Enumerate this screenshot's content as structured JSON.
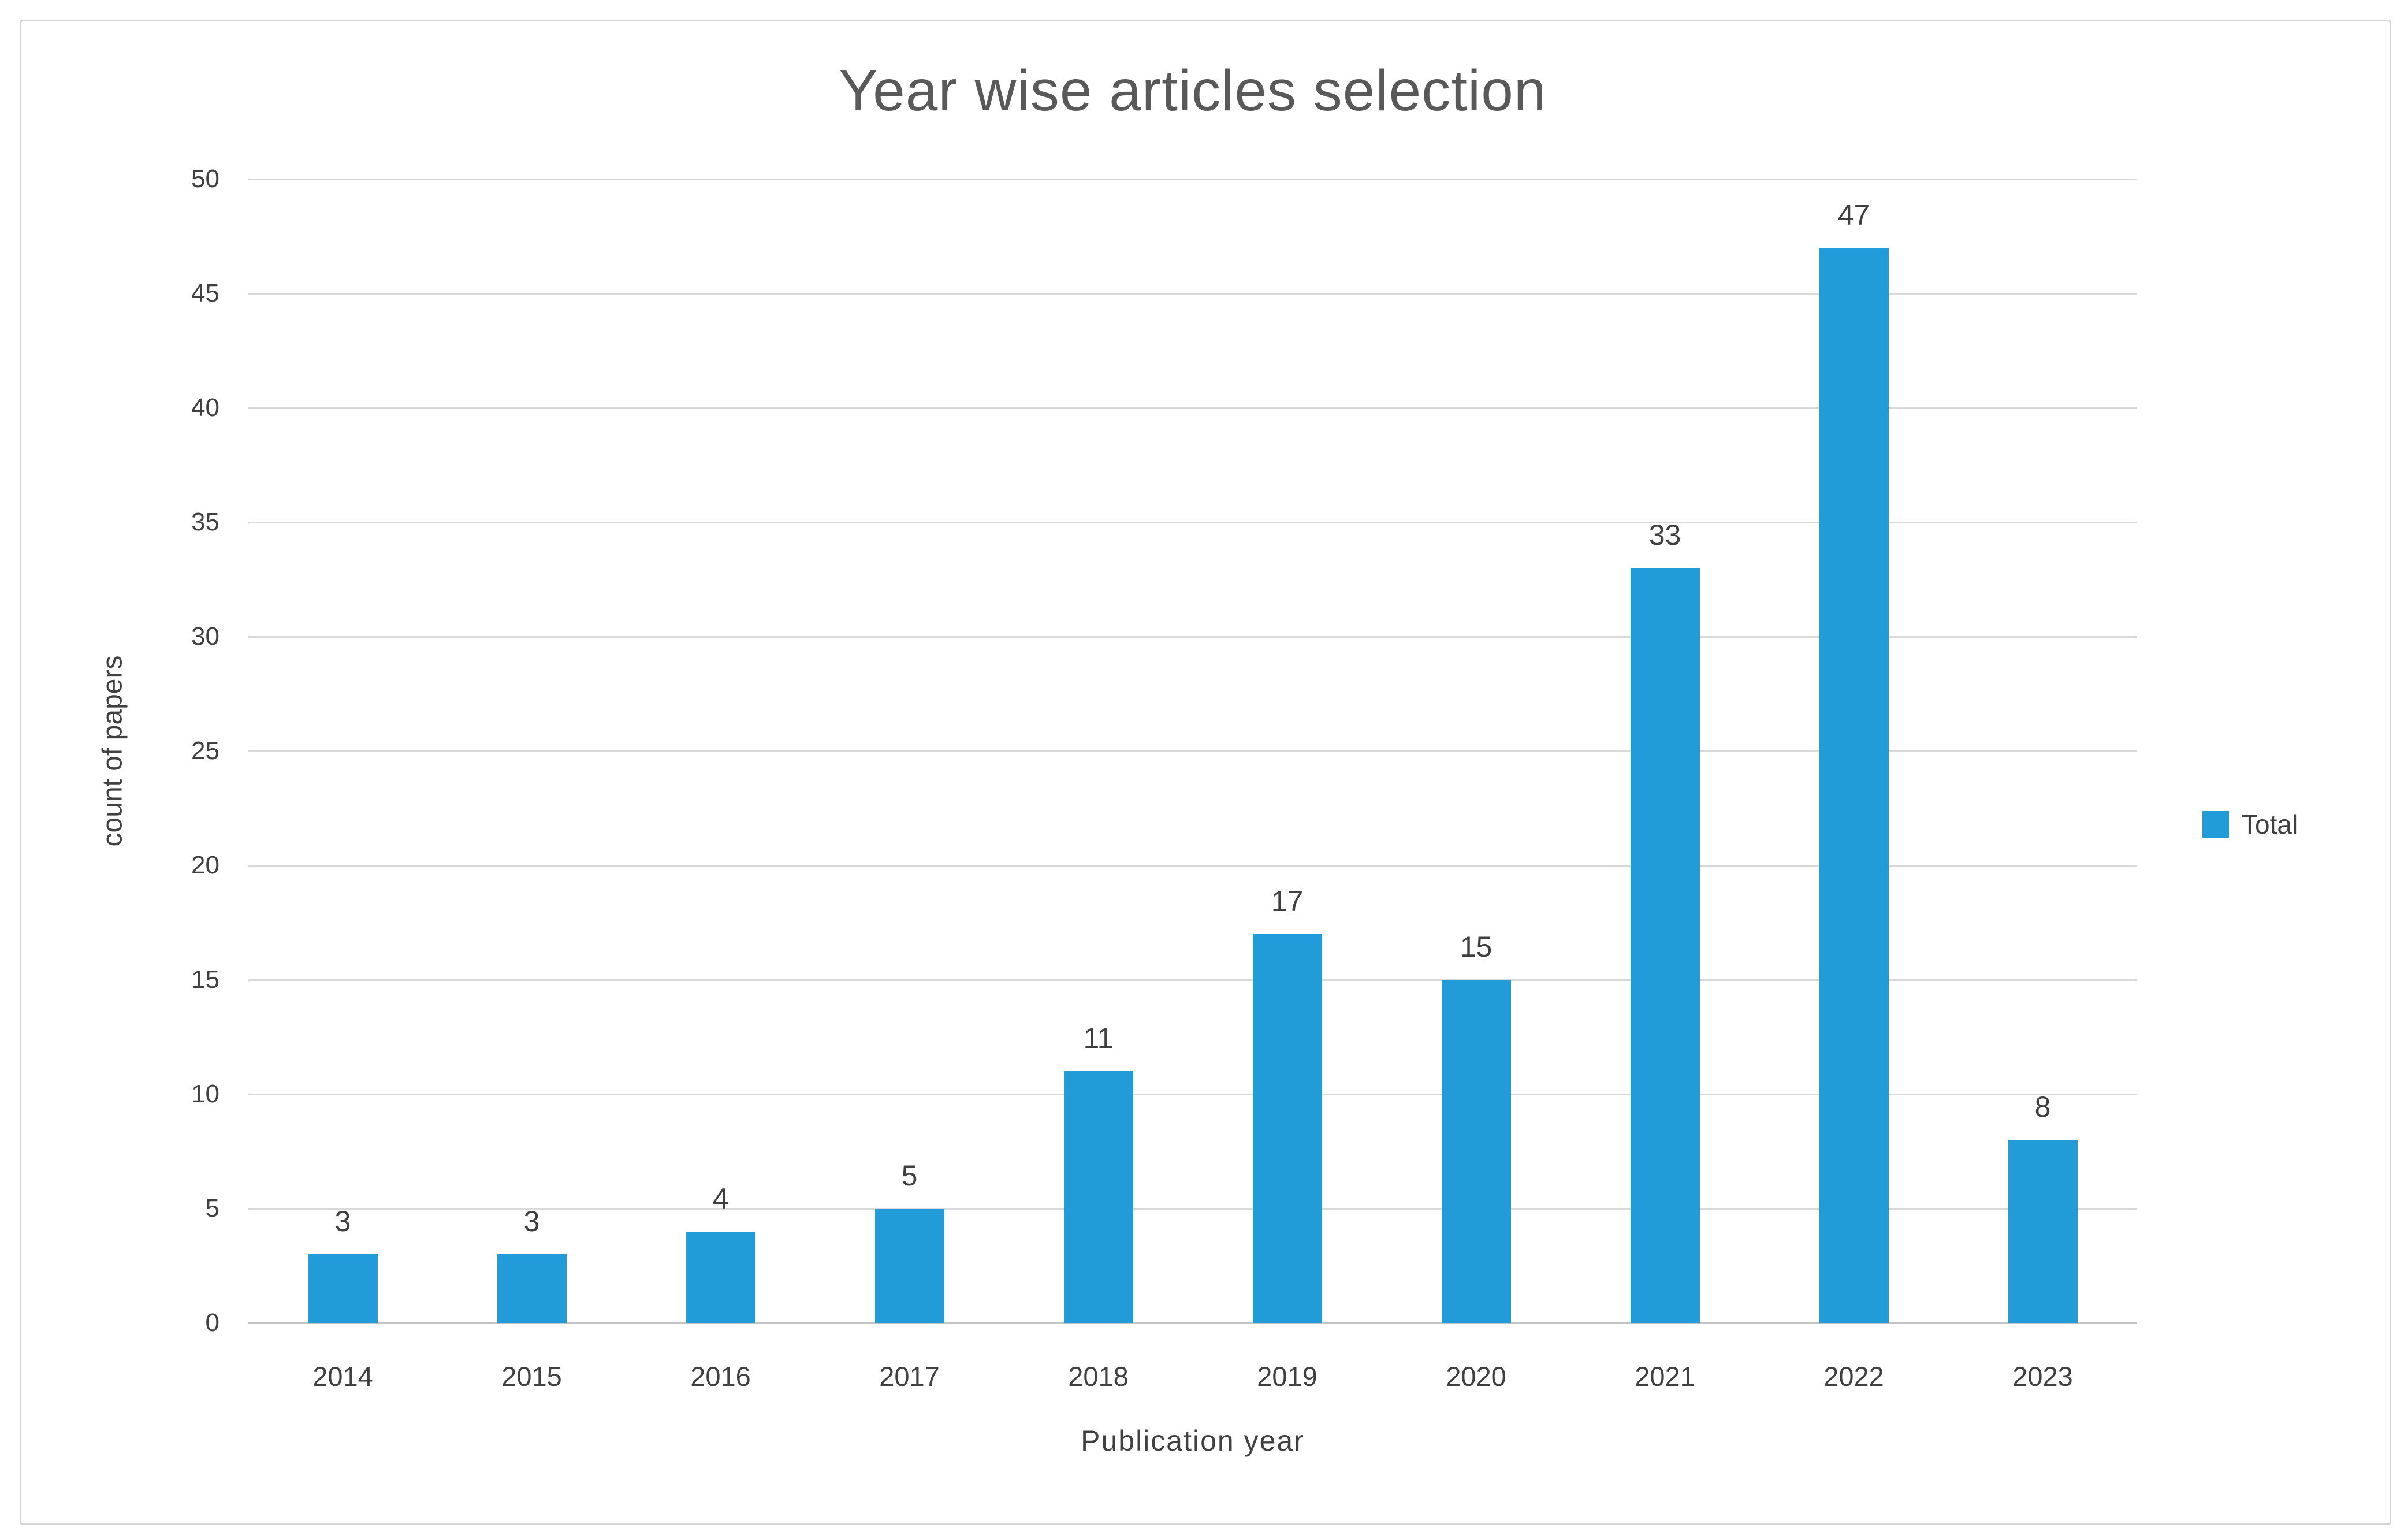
{
  "chart_data": {
    "type": "bar",
    "title": "Year wise articles selection",
    "xlabel": "Publication year",
    "ylabel": "count of papers",
    "categories": [
      "2014",
      "2015",
      "2016",
      "2017",
      "2018",
      "2019",
      "2020",
      "2021",
      "2022",
      "2023"
    ],
    "series": [
      {
        "name": "Total",
        "values": [
          3,
          3,
          4,
          5,
          11,
          17,
          15,
          33,
          47,
          8
        ]
      }
    ],
    "ylim": [
      0,
      50
    ],
    "ytick_step": 5,
    "yticks": [
      0,
      5,
      10,
      15,
      20,
      25,
      30,
      35,
      40,
      45,
      50
    ],
    "grid": true,
    "data_labels": true,
    "legend_position": "right",
    "bar_color": "#219cd8",
    "gridline_color": "#d9d9d9",
    "title_color": "#595959",
    "label_color": "#404040"
  }
}
